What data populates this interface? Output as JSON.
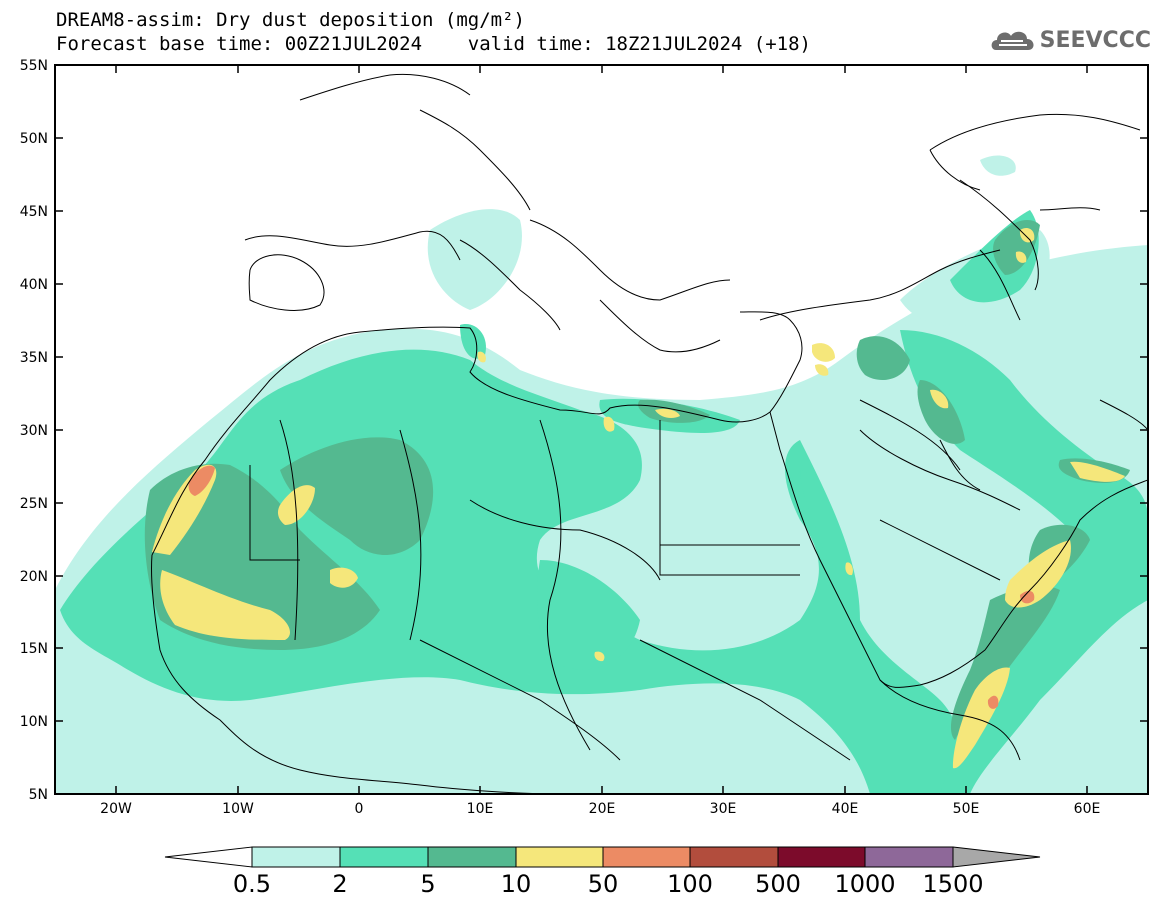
{
  "title": {
    "line1": "DREAM8-assim: Dry dust deposition (mg/m²)",
    "line2": "Forecast base time: 00Z21JUL2024    valid time: 18Z21JUL2024 (+18)"
  },
  "logo": {
    "text": "SEEVCCC",
    "icon": "cloud-icon"
  },
  "map": {
    "lat_labels": [
      "55N",
      "50N",
      "45N",
      "40N",
      "35N",
      "30N",
      "25N",
      "20N",
      "15N",
      "10N",
      "5N"
    ],
    "lon_labels": [
      "20W",
      "10W",
      "0",
      "10E",
      "20E",
      "30E",
      "40E",
      "50E",
      "60E"
    ],
    "lat_range": [
      5,
      55
    ],
    "lon_range": [
      -25,
      65
    ],
    "land_color": "#ffffff",
    "border_color": "#000000"
  },
  "colorbar": {
    "labels": [
      "0.5",
      "2",
      "5",
      "10",
      "50",
      "100",
      "500",
      "1000",
      "1500"
    ],
    "colors": [
      "#bff2e8",
      "#55e0b6",
      "#54b990",
      "#f5e77b",
      "#ec8b64",
      "#b24d3d",
      "#7c0b2b",
      "#8e6899",
      "#a8a8a8"
    ]
  }
}
